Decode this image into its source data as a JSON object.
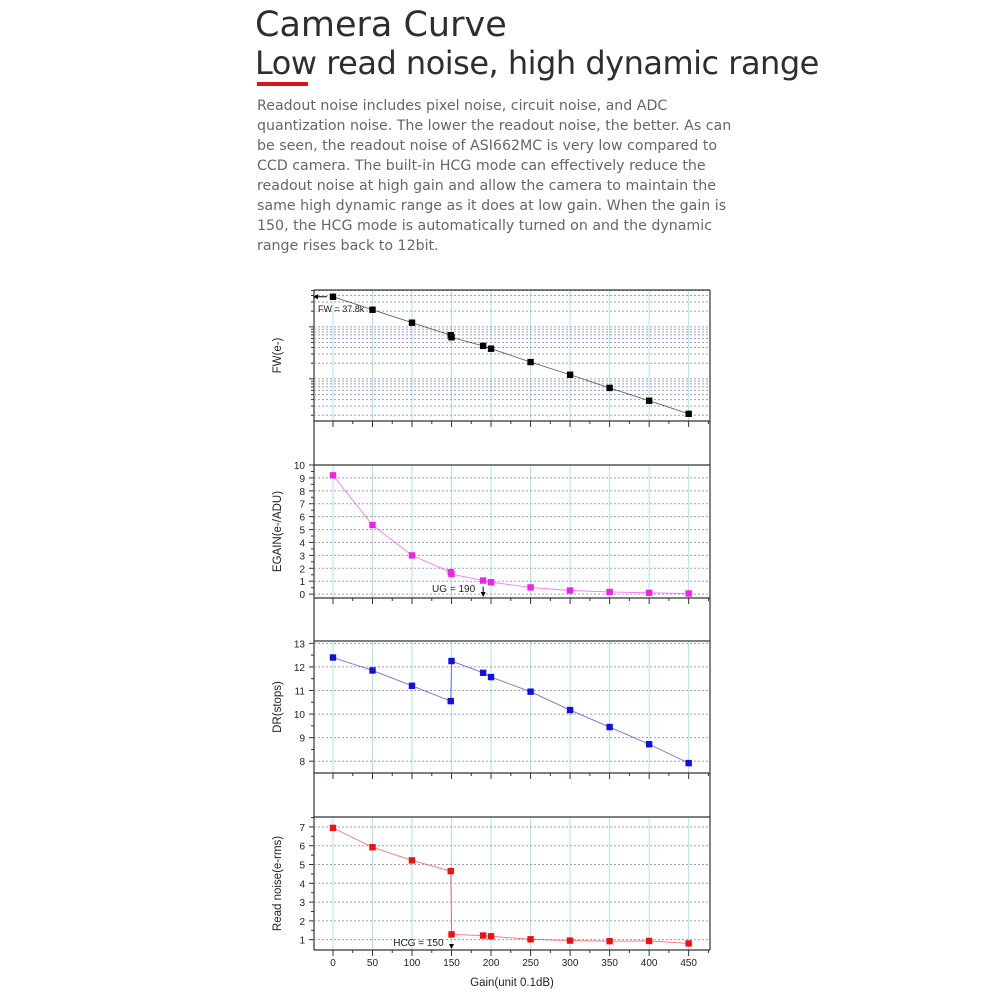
{
  "header": {
    "title": "Camera Curve",
    "subtitle": "Low read noise, high dynamic range",
    "accent_color": "#d9141b",
    "description": "Readout noise includes pixel noise, circuit noise, and ADC quantization noise. The lower the readout noise, the better. As can be seen, the readout noise of ASI662MC is very low compared to CCD camera. The built-in HCG mode can effectively reduce the readout noise at high gain and allow the camera to maintain the same high dynamic range as it does at low gain. When the gain is 150, the HCG mode is automatically turned on and the dynamic range rises back to 12bit."
  },
  "chart_data": [
    {
      "type": "line",
      "ylabel": "FW(e-)",
      "yscale": "log",
      "ylim": [
        155,
        51000
      ],
      "show_y_tick_labels": false,
      "x": [
        0,
        50,
        100,
        149,
        150,
        190,
        200,
        250,
        300,
        350,
        400,
        450
      ],
      "values": [
        37800,
        21300,
        12000,
        6900,
        6300,
        4300,
        3800,
        2100,
        1200,
        670,
        380,
        213
      ],
      "color": "#000000",
      "annotation": {
        "text": "FW = 37.8k",
        "x": 0,
        "arrow": "left"
      },
      "grid": true
    },
    {
      "type": "line",
      "ylabel": "EGAIN(e-/ADU)",
      "ylim": [
        -0.3,
        10
      ],
      "yticks": [
        "0",
        "1",
        "2",
        "3",
        "4",
        "5",
        "6",
        "7",
        "8",
        "9",
        "10"
      ],
      "x": [
        0,
        50,
        100,
        149,
        150,
        190,
        200,
        250,
        300,
        350,
        400,
        450
      ],
      "values": [
        9.2,
        5.35,
        3.0,
        1.7,
        1.55,
        1.05,
        0.92,
        0.52,
        0.28,
        0.17,
        0.1,
        0.05
      ],
      "color": "#ee22ee",
      "annotation": {
        "text": "UG = 190",
        "x": 190,
        "arrow": "down"
      },
      "grid": true
    },
    {
      "type": "line",
      "ylabel": "DR(stops)",
      "ylim": [
        7.5,
        13.1
      ],
      "yticks": [
        "8",
        "9",
        "10",
        "11",
        "12",
        "13"
      ],
      "x": [
        0,
        50,
        100,
        149,
        150,
        190,
        200,
        250,
        300,
        350,
        400,
        450
      ],
      "values": [
        12.4,
        11.85,
        11.2,
        10.55,
        12.25,
        11.75,
        11.57,
        10.95,
        10.17,
        9.45,
        8.72,
        7.92
      ],
      "color": "#1010e0",
      "grid": true
    },
    {
      "type": "line",
      "ylabel": "Read noise(e-rms)",
      "xlabel": "Gain(unit 0.1dB)",
      "xticks": [
        "0",
        "50",
        "100",
        "150",
        "200",
        "250",
        "300",
        "350",
        "400",
        "450"
      ],
      "xlim": [
        -24,
        477
      ],
      "ylim": [
        0.45,
        7.53
      ],
      "yticks": [
        "1",
        "2",
        "3",
        "4",
        "5",
        "6",
        "7"
      ],
      "x": [
        0,
        50,
        100,
        149,
        150,
        190,
        200,
        250,
        300,
        350,
        400,
        450
      ],
      "values": [
        6.95,
        5.92,
        5.22,
        4.65,
        1.28,
        1.22,
        1.18,
        1.02,
        0.95,
        0.92,
        0.93,
        0.8
      ],
      "color": "#ee1111",
      "annotation": {
        "text": "HCG = 150",
        "x": 150,
        "arrow": "down"
      },
      "grid": true
    }
  ]
}
